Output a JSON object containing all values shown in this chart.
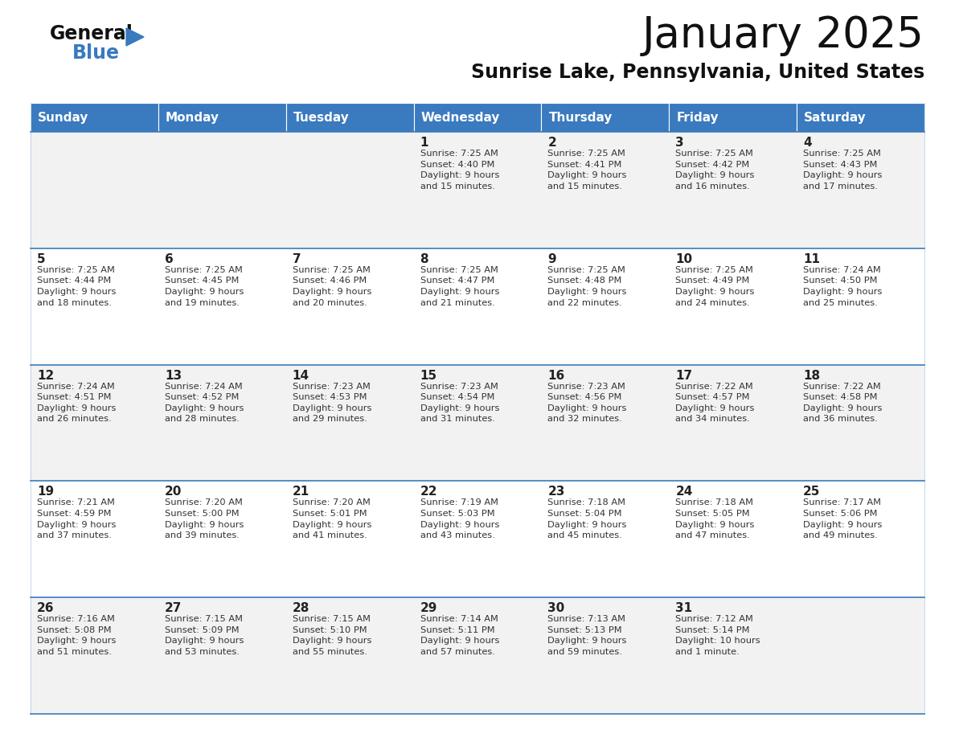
{
  "title": "January 2025",
  "subtitle": "Sunrise Lake, Pennsylvania, United States",
  "header_bg": "#3a7abf",
  "header_text": "#ffffff",
  "days_of_week": [
    "Sunday",
    "Monday",
    "Tuesday",
    "Wednesday",
    "Thursday",
    "Friday",
    "Saturday"
  ],
  "row_bg_odd": "#f2f2f2",
  "row_bg_even": "#ffffff",
  "cell_border": "#3a7abf",
  "day_num_color": "#222222",
  "cell_text_color": "#333333",
  "calendar": [
    [
      {
        "day": "",
        "info": ""
      },
      {
        "day": "",
        "info": ""
      },
      {
        "day": "",
        "info": ""
      },
      {
        "day": "1",
        "info": "Sunrise: 7:25 AM\nSunset: 4:40 PM\nDaylight: 9 hours\nand 15 minutes."
      },
      {
        "day": "2",
        "info": "Sunrise: 7:25 AM\nSunset: 4:41 PM\nDaylight: 9 hours\nand 15 minutes."
      },
      {
        "day": "3",
        "info": "Sunrise: 7:25 AM\nSunset: 4:42 PM\nDaylight: 9 hours\nand 16 minutes."
      },
      {
        "day": "4",
        "info": "Sunrise: 7:25 AM\nSunset: 4:43 PM\nDaylight: 9 hours\nand 17 minutes."
      }
    ],
    [
      {
        "day": "5",
        "info": "Sunrise: 7:25 AM\nSunset: 4:44 PM\nDaylight: 9 hours\nand 18 minutes."
      },
      {
        "day": "6",
        "info": "Sunrise: 7:25 AM\nSunset: 4:45 PM\nDaylight: 9 hours\nand 19 minutes."
      },
      {
        "day": "7",
        "info": "Sunrise: 7:25 AM\nSunset: 4:46 PM\nDaylight: 9 hours\nand 20 minutes."
      },
      {
        "day": "8",
        "info": "Sunrise: 7:25 AM\nSunset: 4:47 PM\nDaylight: 9 hours\nand 21 minutes."
      },
      {
        "day": "9",
        "info": "Sunrise: 7:25 AM\nSunset: 4:48 PM\nDaylight: 9 hours\nand 22 minutes."
      },
      {
        "day": "10",
        "info": "Sunrise: 7:25 AM\nSunset: 4:49 PM\nDaylight: 9 hours\nand 24 minutes."
      },
      {
        "day": "11",
        "info": "Sunrise: 7:24 AM\nSunset: 4:50 PM\nDaylight: 9 hours\nand 25 minutes."
      }
    ],
    [
      {
        "day": "12",
        "info": "Sunrise: 7:24 AM\nSunset: 4:51 PM\nDaylight: 9 hours\nand 26 minutes."
      },
      {
        "day": "13",
        "info": "Sunrise: 7:24 AM\nSunset: 4:52 PM\nDaylight: 9 hours\nand 28 minutes."
      },
      {
        "day": "14",
        "info": "Sunrise: 7:23 AM\nSunset: 4:53 PM\nDaylight: 9 hours\nand 29 minutes."
      },
      {
        "day": "15",
        "info": "Sunrise: 7:23 AM\nSunset: 4:54 PM\nDaylight: 9 hours\nand 31 minutes."
      },
      {
        "day": "16",
        "info": "Sunrise: 7:23 AM\nSunset: 4:56 PM\nDaylight: 9 hours\nand 32 minutes."
      },
      {
        "day": "17",
        "info": "Sunrise: 7:22 AM\nSunset: 4:57 PM\nDaylight: 9 hours\nand 34 minutes."
      },
      {
        "day": "18",
        "info": "Sunrise: 7:22 AM\nSunset: 4:58 PM\nDaylight: 9 hours\nand 36 minutes."
      }
    ],
    [
      {
        "day": "19",
        "info": "Sunrise: 7:21 AM\nSunset: 4:59 PM\nDaylight: 9 hours\nand 37 minutes."
      },
      {
        "day": "20",
        "info": "Sunrise: 7:20 AM\nSunset: 5:00 PM\nDaylight: 9 hours\nand 39 minutes."
      },
      {
        "day": "21",
        "info": "Sunrise: 7:20 AM\nSunset: 5:01 PM\nDaylight: 9 hours\nand 41 minutes."
      },
      {
        "day": "22",
        "info": "Sunrise: 7:19 AM\nSunset: 5:03 PM\nDaylight: 9 hours\nand 43 minutes."
      },
      {
        "day": "23",
        "info": "Sunrise: 7:18 AM\nSunset: 5:04 PM\nDaylight: 9 hours\nand 45 minutes."
      },
      {
        "day": "24",
        "info": "Sunrise: 7:18 AM\nSunset: 5:05 PM\nDaylight: 9 hours\nand 47 minutes."
      },
      {
        "day": "25",
        "info": "Sunrise: 7:17 AM\nSunset: 5:06 PM\nDaylight: 9 hours\nand 49 minutes."
      }
    ],
    [
      {
        "day": "26",
        "info": "Sunrise: 7:16 AM\nSunset: 5:08 PM\nDaylight: 9 hours\nand 51 minutes."
      },
      {
        "day": "27",
        "info": "Sunrise: 7:15 AM\nSunset: 5:09 PM\nDaylight: 9 hours\nand 53 minutes."
      },
      {
        "day": "28",
        "info": "Sunrise: 7:15 AM\nSunset: 5:10 PM\nDaylight: 9 hours\nand 55 minutes."
      },
      {
        "day": "29",
        "info": "Sunrise: 7:14 AM\nSunset: 5:11 PM\nDaylight: 9 hours\nand 57 minutes."
      },
      {
        "day": "30",
        "info": "Sunrise: 7:13 AM\nSunset: 5:13 PM\nDaylight: 9 hours\nand 59 minutes."
      },
      {
        "day": "31",
        "info": "Sunrise: 7:12 AM\nSunset: 5:14 PM\nDaylight: 10 hours\nand 1 minute."
      },
      {
        "day": "",
        "info": ""
      }
    ]
  ],
  "fig_width": 11.88,
  "fig_height": 9.18,
  "dpi": 100
}
